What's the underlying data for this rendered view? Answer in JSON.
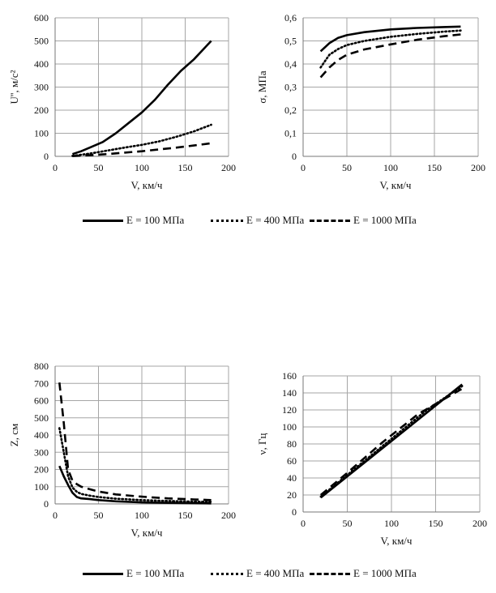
{
  "legend": {
    "items": [
      {
        "label": "E = 100 МПа",
        "style": "solid"
      },
      {
        "label": "E = 400 МПа",
        "style": "dotted"
      },
      {
        "label": "E = 1000 МПа",
        "style": "dashed"
      }
    ]
  },
  "chart_data": [
    {
      "type": "line",
      "xlabel": "V, км/ч",
      "ylabel": "U'', м/с²",
      "xlim": [
        0,
        200
      ],
      "ylim": [
        0,
        600
      ],
      "xticks": [
        0,
        50,
        100,
        150,
        200
      ],
      "yticks": [
        0,
        100,
        200,
        300,
        400,
        500,
        600
      ],
      "ytick_labels": [
        "0",
        "100",
        "200",
        "300",
        "400",
        "500",
        "600"
      ],
      "grid": true,
      "series": [
        {
          "name": "E = 100 МПа",
          "style": "solid",
          "x": [
            20,
            30,
            40,
            55,
            70,
            85,
            100,
            115,
            130,
            145,
            160,
            180
          ],
          "y": [
            10,
            22,
            38,
            62,
            100,
            145,
            190,
            245,
            310,
            370,
            420,
            500
          ]
        },
        {
          "name": "E = 400 МПа",
          "style": "dotted",
          "x": [
            20,
            40,
            60,
            80,
            100,
            120,
            140,
            160,
            180
          ],
          "y": [
            2,
            12,
            25,
            38,
            50,
            65,
            85,
            108,
            137
          ]
        },
        {
          "name": "E = 1000 МПа",
          "style": "dashed",
          "x": [
            20,
            40,
            60,
            80,
            100,
            120,
            140,
            160,
            180
          ],
          "y": [
            1,
            5,
            10,
            16,
            22,
            30,
            38,
            47,
            57
          ]
        }
      ]
    },
    {
      "type": "line",
      "xlabel": "V, км/ч",
      "ylabel": "σ, МПа",
      "xlim": [
        0,
        200
      ],
      "ylim": [
        0,
        0.6
      ],
      "xticks": [
        0,
        50,
        100,
        150,
        200
      ],
      "yticks": [
        0,
        0.1,
        0.2,
        0.3,
        0.4,
        0.5,
        0.6
      ],
      "ytick_labels": [
        "0",
        "0,1",
        "0,2",
        "0,3",
        "0,4",
        "0,5",
        "0,6"
      ],
      "grid": true,
      "series": [
        {
          "name": "E = 100 МПа",
          "style": "solid",
          "x": [
            20,
            30,
            40,
            50,
            70,
            100,
            130,
            160,
            180
          ],
          "y": [
            0.455,
            0.49,
            0.513,
            0.525,
            0.538,
            0.55,
            0.556,
            0.56,
            0.562
          ]
        },
        {
          "name": "E = 400 МПа",
          "style": "dotted",
          "x": [
            20,
            30,
            40,
            50,
            70,
            100,
            130,
            160,
            180
          ],
          "y": [
            0.385,
            0.44,
            0.465,
            0.482,
            0.5,
            0.518,
            0.53,
            0.54,
            0.545
          ]
        },
        {
          "name": "E = 1000 МПа",
          "style": "dashed",
          "x": [
            20,
            30,
            40,
            50,
            70,
            100,
            130,
            160,
            180
          ],
          "y": [
            0.342,
            0.385,
            0.418,
            0.44,
            0.463,
            0.485,
            0.505,
            0.52,
            0.528
          ]
        }
      ]
    },
    {
      "type": "line",
      "xlabel": "V, км/ч",
      "ylabel": "Z, см",
      "xlim": [
        0,
        200
      ],
      "ylim": [
        0,
        800
      ],
      "xticks": [
        0,
        50,
        100,
        150,
        200
      ],
      "yticks": [
        0,
        100,
        200,
        300,
        400,
        500,
        600,
        700,
        800
      ],
      "ytick_labels": [
        "0",
        "100",
        "200",
        "300",
        "400",
        "500",
        "600",
        "700",
        "800"
      ],
      "grid": true,
      "series": [
        {
          "name": "E = 100 МПа",
          "style": "solid",
          "x": [
            5,
            10,
            15,
            20,
            25,
            30,
            40,
            50,
            70,
            100,
            130,
            160,
            180
          ],
          "y": [
            220,
            160,
            110,
            65,
            40,
            32,
            28,
            22,
            15,
            9,
            6,
            4,
            3
          ]
        },
        {
          "name": "E = 400 МПа",
          "style": "dotted",
          "x": [
            5,
            10,
            15,
            20,
            25,
            30,
            40,
            50,
            70,
            100,
            130,
            160,
            180
          ],
          "y": [
            440,
            300,
            160,
            95,
            70,
            58,
            48,
            40,
            30,
            22,
            17,
            13,
            12
          ]
        },
        {
          "name": "E = 1000 МПа",
          "style": "dashed",
          "x": [
            5,
            10,
            15,
            20,
            25,
            30,
            40,
            50,
            70,
            100,
            130,
            160,
            180
          ],
          "y": [
            705,
            470,
            200,
            135,
            115,
            100,
            85,
            72,
            55,
            42,
            32,
            26,
            22
          ]
        }
      ]
    },
    {
      "type": "line",
      "xlabel": "V, км/ч",
      "ylabel": "ν, Гц",
      "xlim": [
        0,
        200
      ],
      "ylim": [
        0,
        160
      ],
      "xticks": [
        0,
        50,
        100,
        150,
        200
      ],
      "yticks": [
        0,
        20,
        40,
        60,
        80,
        100,
        120,
        140,
        160
      ],
      "ytick_labels": [
        "0",
        "20",
        "40",
        "60",
        "80",
        "100",
        "120",
        "140",
        "160"
      ],
      "grid": true,
      "series": [
        {
          "name": "E = 100 МПа",
          "style": "solid",
          "x": [
            20,
            180
          ],
          "y": [
            17,
            150
          ]
        },
        {
          "name": "E = 400 МПа",
          "style": "dotted",
          "x": [
            20,
            60,
            100,
            140,
            180
          ],
          "y": [
            18,
            52,
            86,
            120,
            148
          ]
        },
        {
          "name": "E = 1000 МПа",
          "style": "dashed",
          "x": [
            20,
            50,
            90,
            130,
            180
          ],
          "y": [
            20,
            46,
            82,
            115,
            145
          ]
        }
      ]
    }
  ]
}
